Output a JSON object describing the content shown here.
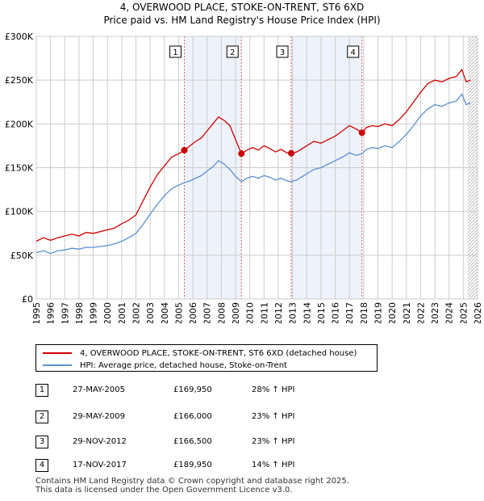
{
  "title_line1": "4, OVERWOOD PLACE, STOKE-ON-TRENT, ST6 6XD",
  "title_line2": "Price paid vs. HM Land Registry's House Price Index (HPI)",
  "colors": {
    "property": "#cc0000",
    "hpi": "#5b8fcf",
    "band": "#eef2fb",
    "marker_line": "#e06060",
    "grid": "#cccccc"
  },
  "chart_data": {
    "type": "line",
    "xlim": [
      1995,
      2026
    ],
    "ylim": [
      0,
      300000
    ],
    "y_ticks": [
      {
        "value": 0,
        "label": "£0"
      },
      {
        "value": 50000,
        "label": "£50K"
      },
      {
        "value": 100000,
        "label": "£100K"
      },
      {
        "value": 150000,
        "label": "£150K"
      },
      {
        "value": 200000,
        "label": "£200K"
      },
      {
        "value": 250000,
        "label": "£250K"
      },
      {
        "value": 300000,
        "label": "£300K"
      }
    ],
    "x_ticks": [
      "1995",
      "1996",
      "1997",
      "1998",
      "1999",
      "2000",
      "2001",
      "2002",
      "2003",
      "2004",
      "2005",
      "2006",
      "2007",
      "2008",
      "2009",
      "2010",
      "2011",
      "2012",
      "2013",
      "2014",
      "2015",
      "2016",
      "2017",
      "2018",
      "2019",
      "2020",
      "2021",
      "2022",
      "2023",
      "2024",
      "2025",
      "2026"
    ],
    "shaded_ranges": [
      [
        2005.4,
        2009.41
      ],
      [
        2012.91,
        2017.88
      ]
    ],
    "forecast_start": 2025.3,
    "series": [
      {
        "name": "4, OVERWOOD PLACE, STOKE-ON-TRENT, ST6 6XD (detached house)",
        "color": "#cc0000",
        "x": [
          1995,
          1995.5,
          1996,
          1996.5,
          1997,
          1997.5,
          1998,
          1998.5,
          1999,
          1999.5,
          2000,
          2000.5,
          2001,
          2001.5,
          2002,
          2002.5,
          2003,
          2003.5,
          2004,
          2004.5,
          2005,
          2005.4,
          2005.8,
          2006.2,
          2006.6,
          2007,
          2007.4,
          2007.8,
          2008.2,
          2008.6,
          2009,
          2009.41,
          2009.8,
          2010.2,
          2010.6,
          2011,
          2011.4,
          2011.8,
          2012.2,
          2012.6,
          2012.91,
          2013.3,
          2013.7,
          2014.1,
          2014.5,
          2015,
          2015.5,
          2016,
          2016.5,
          2017,
          2017.5,
          2017.88,
          2018.2,
          2018.6,
          2019,
          2019.5,
          2020,
          2020.5,
          2021,
          2021.5,
          2022,
          2022.5,
          2023,
          2023.5,
          2024,
          2024.5,
          2024.9,
          2025.2,
          2025.5
        ],
        "values": [
          66000,
          70000,
          67000,
          70000,
          72000,
          74000,
          72000,
          76000,
          75000,
          77000,
          79000,
          81000,
          86000,
          90000,
          96000,
          112000,
          128000,
          142000,
          152000,
          162000,
          166000,
          169950,
          175000,
          180000,
          184000,
          192000,
          200000,
          208000,
          204000,
          198000,
          182000,
          166000,
          170000,
          173000,
          170000,
          175000,
          172000,
          168000,
          171000,
          167000,
          166500,
          168000,
          172000,
          176000,
          180000,
          178000,
          182000,
          186000,
          192000,
          198000,
          194000,
          189950,
          196000,
          198000,
          197000,
          200000,
          198000,
          205000,
          214000,
          225000,
          236000,
          246000,
          250000,
          248000,
          252000,
          254000,
          262000,
          248000,
          250000
        ]
      },
      {
        "name": "HPI: Average price, detached house, Stoke-on-Trent",
        "color": "#5b8fcf",
        "x": [
          1995,
          1995.5,
          1996,
          1996.5,
          1997,
          1997.5,
          1998,
          1998.5,
          1999,
          1999.5,
          2000,
          2000.5,
          2001,
          2001.5,
          2002,
          2002.5,
          2003,
          2003.5,
          2004,
          2004.5,
          2005,
          2005.4,
          2005.8,
          2006.2,
          2006.6,
          2007,
          2007.4,
          2007.8,
          2008.2,
          2008.6,
          2009,
          2009.41,
          2009.8,
          2010.2,
          2010.6,
          2011,
          2011.4,
          2011.8,
          2012.2,
          2012.6,
          2012.91,
          2013.3,
          2013.7,
          2014.1,
          2014.5,
          2015,
          2015.5,
          2016,
          2016.5,
          2017,
          2017.5,
          2017.88,
          2018.2,
          2018.6,
          2019,
          2019.5,
          2020,
          2020.5,
          2021,
          2021.5,
          2022,
          2022.5,
          2023,
          2023.5,
          2024,
          2024.5,
          2024.9,
          2025.2,
          2025.5
        ],
        "values": [
          53000,
          55000,
          52000,
          55000,
          56000,
          58000,
          57000,
          59000,
          59000,
          60000,
          61000,
          63000,
          66000,
          70000,
          75000,
          85000,
          97000,
          108000,
          118000,
          126000,
          130000,
          133000,
          135000,
          138000,
          141000,
          146000,
          151000,
          158000,
          154000,
          148000,
          140000,
          134000,
          138000,
          140000,
          138000,
          141000,
          139000,
          136000,
          138000,
          135000,
          134000,
          136000,
          140000,
          144000,
          148000,
          150000,
          154000,
          158000,
          162000,
          167000,
          164000,
          166000,
          171000,
          173000,
          172000,
          175000,
          173000,
          180000,
          188000,
          198000,
          209000,
          217000,
          222000,
          220000,
          224000,
          226000,
          234000,
          222000,
          224000
        ]
      }
    ],
    "sales": [
      {
        "id": "1",
        "x": 2005.4,
        "value": 169950
      },
      {
        "id": "2",
        "x": 2009.41,
        "value": 166000
      },
      {
        "id": "3",
        "x": 2012.91,
        "value": 166500
      },
      {
        "id": "4",
        "x": 2017.88,
        "value": 189950
      }
    ]
  },
  "legend": {
    "property_label": "4, OVERWOOD PLACE, STOKE-ON-TRENT, ST6 6XD (detached house)",
    "hpi_label": "HPI: Average price, detached house, Stoke-on-Trent"
  },
  "transactions": [
    {
      "id": "1",
      "date": "27-MAY-2005",
      "price": "£169,950",
      "hpi": "28% ↑ HPI"
    },
    {
      "id": "2",
      "date": "29-MAY-2009",
      "price": "£166,000",
      "hpi": "23% ↑ HPI"
    },
    {
      "id": "3",
      "date": "29-NOV-2012",
      "price": "£166,500",
      "hpi": "23% ↑ HPI"
    },
    {
      "id": "4",
      "date": "17-NOV-2017",
      "price": "£189,950",
      "hpi": "14% ↑ HPI"
    }
  ],
  "footer_line1": "Contains HM Land Registry data © Crown copyright and database right 2025.",
  "footer_line2": "This data is licensed under the Open Government Licence v3.0."
}
